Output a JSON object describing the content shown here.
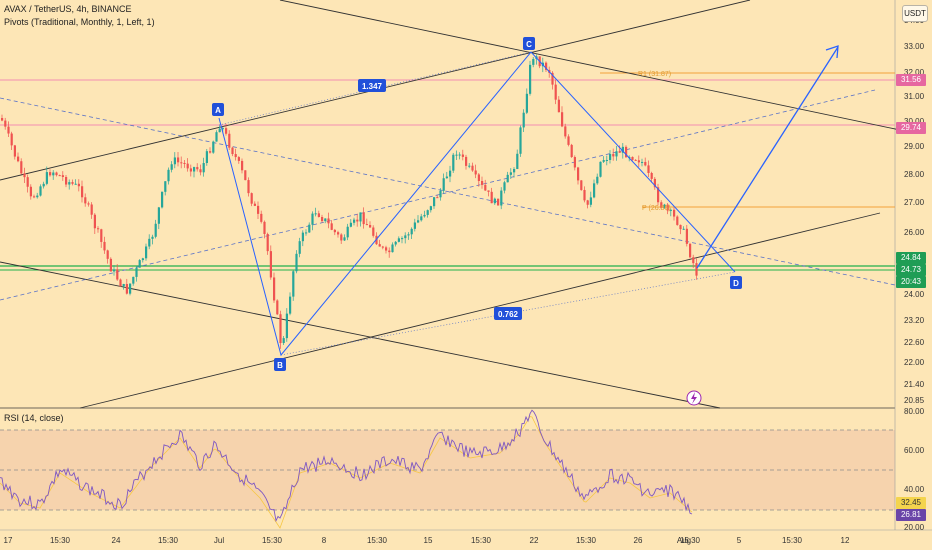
{
  "header": {
    "symbol_line": "AVAX / TetherUS, 4h, BINANCE",
    "indicator_line": "Pivots (Traditional, Monthly, 1, Left, 1)",
    "rsi_line": "RSI (14, close)"
  },
  "currency_button": "USDT",
  "price_axis": {
    "ticks": [
      "34.00",
      "33.00",
      "32.00",
      "31.00",
      "30.00",
      "29.00",
      "28.00",
      "27.00",
      "26.00",
      "25.00",
      "24.00",
      "23.20",
      "22.60",
      "22.00",
      "21.40",
      "20.85"
    ],
    "labels": [
      {
        "text": "31.56",
        "color": "#e667a0"
      },
      {
        "text": "29.74",
        "color": "#e667a0"
      },
      {
        "text": "24.84",
        "color": "#1f9d55"
      },
      {
        "text": "24.73",
        "color": "#1f9d55"
      },
      {
        "text": "20:43",
        "color": "#1f9d55"
      }
    ]
  },
  "rsi_axis": {
    "ticks": [
      "80.00",
      "60.00",
      "40.00",
      "20.00"
    ],
    "labels": [
      {
        "text": "32.45",
        "color": "#f4d44d"
      },
      {
        "text": "26.81",
        "color": "#6a45a8"
      }
    ]
  },
  "time_axis": [
    "17",
    "15:30",
    "24",
    "15:30",
    "Jul",
    "15:30",
    "8",
    "15:30",
    "15",
    "15:30",
    "22",
    "15:30",
    "26",
    "15:30",
    "Aug",
    "5",
    "15:30",
    "12"
  ],
  "pattern_points": [
    "A",
    "B",
    "C",
    "D"
  ],
  "ratios": {
    "ab_c": "1.347",
    "bc_d": "0.762"
  },
  "pivots": {
    "r1": "R1 (31.87)",
    "p": "P (26.86)"
  },
  "colors": {
    "up": "#26a69a",
    "down": "#ef5350",
    "rsi": "#7e57c2",
    "rsi_ma": "#f6c744",
    "pattern": "#2962ff"
  }
}
